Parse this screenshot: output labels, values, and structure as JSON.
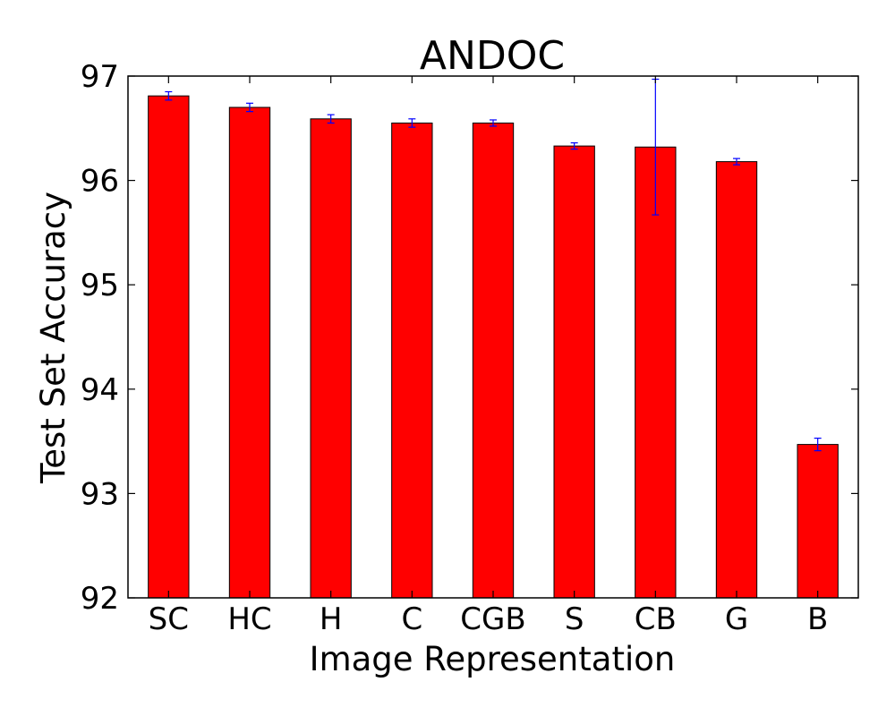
{
  "chart_data": {
    "type": "bar",
    "title": "ANDOC",
    "xlabel": "Image Representation",
    "ylabel": "Test Set Accuracy",
    "categories": [
      "SC",
      "HC",
      "H",
      "C",
      "CGB",
      "S",
      "CB",
      "G",
      "B"
    ],
    "values": [
      96.81,
      96.7,
      96.59,
      96.55,
      96.55,
      96.33,
      96.32,
      96.18,
      93.47
    ],
    "errors": [
      0.04,
      0.04,
      0.04,
      0.04,
      0.03,
      0.03,
      0.65,
      0.03,
      0.06
    ],
    "ylim": [
      92,
      97
    ],
    "yticks": [
      "92",
      "93",
      "94",
      "95",
      "96",
      "97"
    ],
    "grid": false,
    "bar_color": "#ff0000",
    "error_color": "#0000ff"
  }
}
